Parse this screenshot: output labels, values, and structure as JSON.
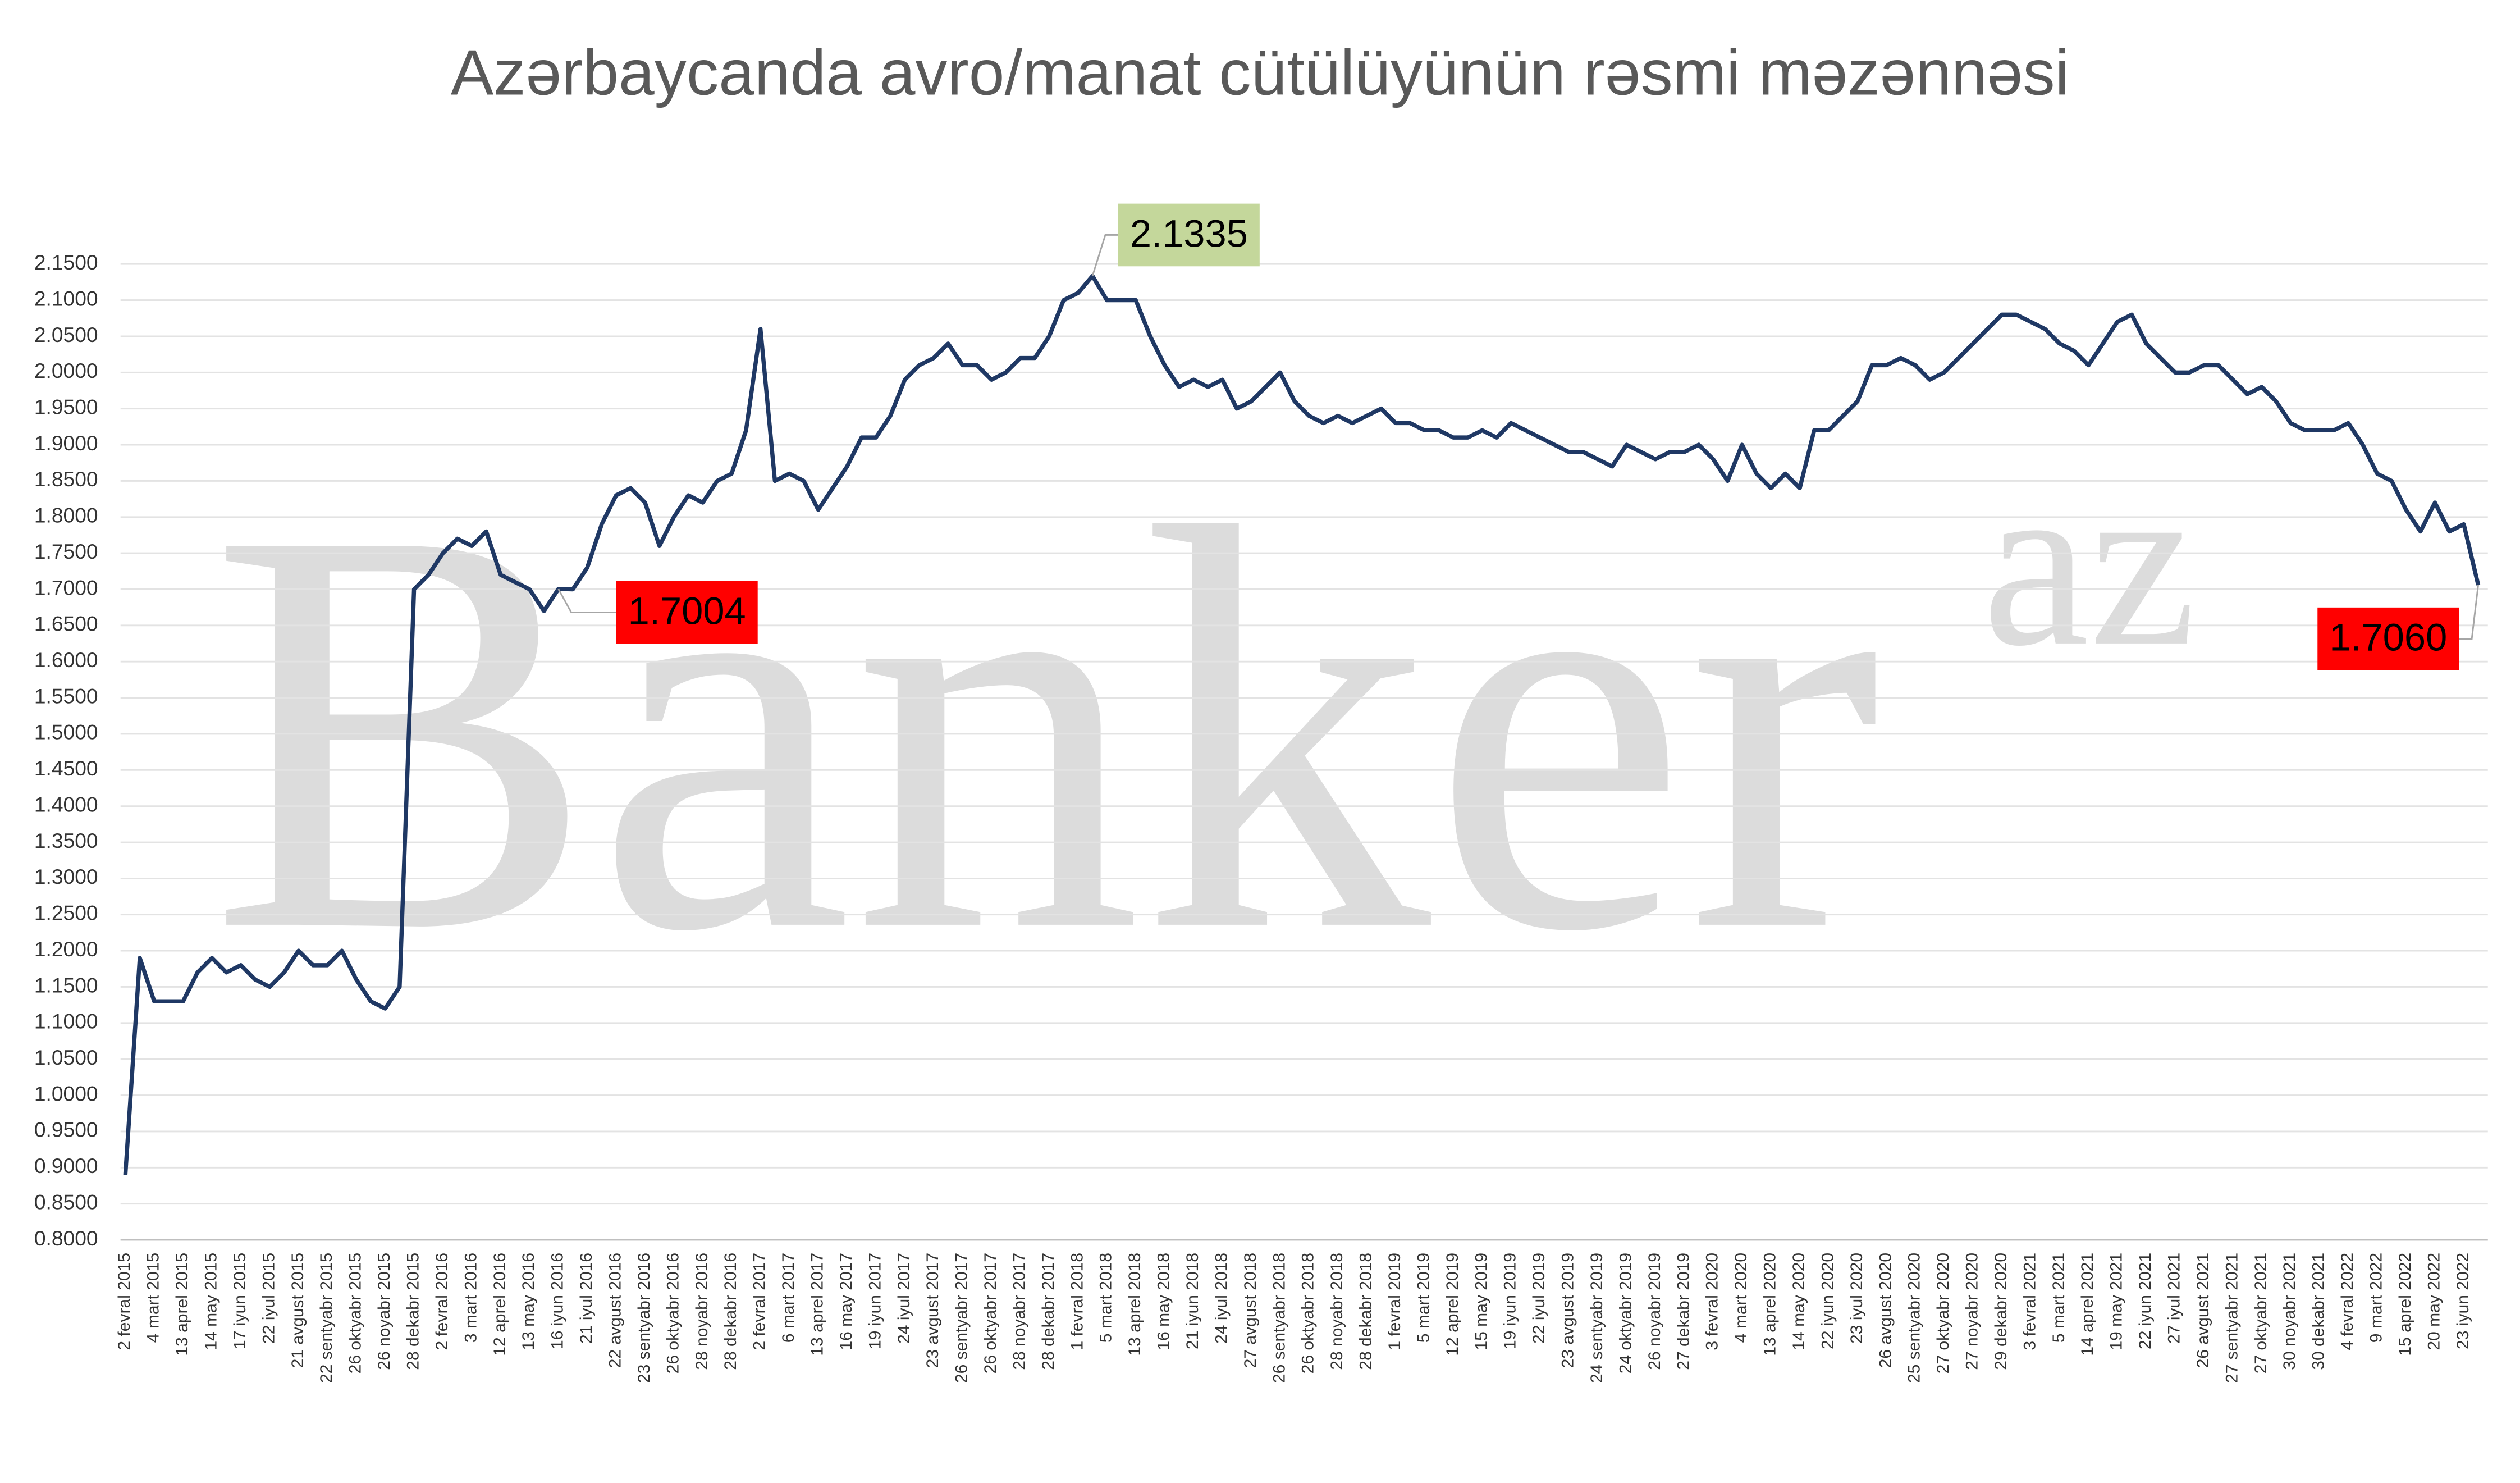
{
  "chart_data": {
    "type": "line",
    "title": "Azərbaycanda avro/manat cütülüyünün rəsmi məzənnəsi",
    "watermark": "Banker",
    "watermark_sup": "az",
    "categories": [
      "2 fevral 2015",
      null,
      "4 mart 2015",
      null,
      "13 aprel 2015",
      null,
      "14 may 2015",
      null,
      "17 iyun 2015",
      null,
      "22 iyul 2015",
      null,
      "21 avgust 2015",
      null,
      "22 sentyabr 2015",
      null,
      "26 oktyabr 2015",
      null,
      "26 noyabr 2015",
      null,
      "28 dekabr 2015",
      null,
      "2 fevral 2016",
      null,
      "3 mart 2016",
      null,
      "12 aprel 2016",
      null,
      "13 may 2016",
      null,
      "16 iyun 2016",
      null,
      "21 iyul 2016",
      null,
      "22 avgust 2016",
      null,
      "23 sentyabr 2016",
      null,
      "26 oktyabr 2016",
      null,
      "28 noyabr 2016",
      null,
      "28 dekabr 2016",
      null,
      "2 fevral 2017",
      null,
      "6 mart 2017",
      null,
      "13 aprel 2017",
      null,
      "16 may 2017",
      null,
      "19 iyun 2017",
      null,
      "24 iyul 2017",
      null,
      "23 avgust 2017",
      null,
      "26 sentyabr 2017",
      null,
      "26 oktyabr 2017",
      null,
      "28 noyabr 2017",
      null,
      "28 dekabr 2017",
      null,
      "1 fevral 2018",
      null,
      "5 mart 2018",
      null,
      "13 aprel 2018",
      null,
      "16 may 2018",
      null,
      "21 iyun 2018",
      null,
      "24 iyul 2018",
      null,
      "27 avgust 2018",
      null,
      "26 sentyabr 2018",
      null,
      "26 oktyabr 2018",
      null,
      "28 noyabr 2018",
      null,
      "28 dekabr 2018",
      null,
      "1 fevral 2019",
      null,
      "5 mart 2019",
      null,
      "12 aprel 2019",
      null,
      "15 may 2019",
      null,
      "19 iyun 2019",
      null,
      "22 iyul 2019",
      null,
      "23 avgust 2019",
      null,
      "24 sentyabr 2019",
      null,
      "24 oktyabr 2019",
      null,
      "26 noyabr 2019",
      null,
      "27 dekabr 2019",
      null,
      "3 fevral 2020",
      null,
      "4 mart 2020",
      null,
      "13 aprel 2020",
      null,
      "14 may 2020",
      null,
      "22 iyun 2020",
      null,
      "23 iyul 2020",
      null,
      "26 avgust 2020",
      null,
      "25 sentyabr 2020",
      null,
      "27 oktyabr 2020",
      null,
      "27 noyabr 2020",
      null,
      "29 dekabr 2020",
      null,
      "3 fevral 2021",
      null,
      "5 mart 2021",
      null,
      "14 aprel 2021",
      null,
      "19 may 2021",
      null,
      "22 iyun 2021",
      null,
      "27 iyul 2021",
      null,
      "26 avgust 2021",
      null,
      "27 sentyabr 2021",
      null,
      "27 oktyabr 2021",
      null,
      "30 noyabr 2021",
      null,
      "30 dekabr 2021",
      null,
      "4 fevral 2022",
      null,
      "9 mart 2022",
      null,
      "15 aprel 2022",
      null,
      "20 may 2022",
      null,
      "23 iyun 2022",
      null
    ],
    "series": [
      {
        "color": "#1f3864",
        "values": [
          0.89,
          1.19,
          1.13,
          1.13,
          1.13,
          1.17,
          1.19,
          1.17,
          1.18,
          1.16,
          1.15,
          1.17,
          1.2,
          1.18,
          1.18,
          1.2,
          1.16,
          1.13,
          1.12,
          1.15,
          1.7,
          1.72,
          1.75,
          1.77,
          1.76,
          1.78,
          1.72,
          1.71,
          1.7,
          1.67,
          1.7004,
          1.7,
          1.73,
          1.79,
          1.83,
          1.84,
          1.82,
          1.76,
          1.8,
          1.83,
          1.82,
          1.85,
          1.86,
          1.92,
          2.06,
          1.85,
          1.86,
          1.85,
          1.81,
          1.84,
          1.87,
          1.91,
          1.91,
          1.94,
          1.99,
          2.01,
          2.02,
          2.04,
          2.01,
          2.01,
          1.99,
          2.0,
          2.02,
          2.02,
          2.05,
          2.1,
          2.11,
          2.1335,
          2.1,
          2.1,
          2.1,
          2.05,
          2.01,
          1.98,
          1.99,
          1.98,
          1.99,
          1.95,
          1.96,
          1.98,
          2.0,
          1.96,
          1.94,
          1.93,
          1.94,
          1.93,
          1.94,
          1.95,
          1.93,
          1.93,
          1.92,
          1.92,
          1.91,
          1.91,
          1.92,
          1.91,
          1.93,
          1.92,
          1.91,
          1.9,
          1.89,
          1.89,
          1.88,
          1.87,
          1.9,
          1.89,
          1.88,
          1.89,
          1.89,
          1.9,
          1.88,
          1.85,
          1.9,
          1.86,
          1.84,
          1.86,
          1.84,
          1.92,
          1.92,
          1.94,
          1.96,
          2.01,
          2.01,
          2.02,
          2.01,
          1.99,
          2.0,
          2.02,
          2.04,
          2.06,
          2.08,
          2.08,
          2.07,
          2.06,
          2.04,
          2.03,
          2.01,
          2.04,
          2.07,
          2.08,
          2.04,
          2.02,
          2.0,
          2.0,
          2.01,
          2.01,
          1.99,
          1.97,
          1.98,
          1.96,
          1.93,
          1.92,
          1.92,
          1.92,
          1.93,
          1.9,
          1.86,
          1.85,
          1.81,
          1.78,
          1.82,
          1.78,
          1.79,
          1.706
        ],
        "value_labels": [
          null,
          null,
          null,
          null,
          null,
          null,
          null,
          null,
          null,
          null,
          null,
          null,
          null,
          null,
          null,
          null,
          null,
          null,
          null,
          null,
          null,
          null,
          null,
          null,
          null,
          null,
          null,
          null,
          null,
          null,
          "1.7004",
          null,
          null,
          null,
          null,
          null,
          null,
          null,
          null,
          null,
          null,
          null,
          null,
          null,
          null,
          null,
          null,
          null,
          null,
          null,
          null,
          null,
          null,
          null,
          null,
          null,
          null,
          null,
          null,
          null,
          null,
          null,
          null,
          null,
          null,
          null,
          null,
          "2.1335",
          null,
          null,
          null,
          null,
          null,
          null,
          null,
          null,
          null,
          null,
          null,
          null,
          null,
          null,
          null,
          null,
          null,
          null,
          null,
          null,
          null,
          null,
          null,
          null,
          null,
          null,
          null,
          null,
          null,
          null,
          null,
          null,
          null,
          null,
          null,
          null,
          null,
          null,
          null,
          null,
          null,
          null,
          null,
          null,
          null,
          null,
          null,
          null,
          null,
          null,
          null,
          null,
          null,
          null,
          null,
          null,
          null,
          null,
          null,
          null,
          null,
          null,
          null,
          null,
          null,
          null,
          null,
          null,
          null,
          null,
          null,
          null,
          null,
          null,
          null,
          null,
          null,
          null,
          null,
          null,
          null,
          null,
          null,
          null,
          null,
          null,
          null,
          null,
          null,
          null,
          null,
          null,
          null,
          null,
          null,
          "1.7060"
        ]
      }
    ],
    "label_colors": {
      "high": "#c4d79b",
      "low": "#ff0000"
    },
    "ylim": [
      0.8,
      2.15
    ],
    "yticks": [
      {
        "value": 0.8,
        "label": "0.8000"
      },
      {
        "value": 0.85,
        "label": "0.8500"
      },
      {
        "value": 0.9,
        "label": "0.9000"
      },
      {
        "value": 0.95,
        "label": "0.9500"
      },
      {
        "value": 1.0,
        "label": "1.0000"
      },
      {
        "value": 1.05,
        "label": "1.0500"
      },
      {
        "value": 1.1,
        "label": "1.1000"
      },
      {
        "value": 1.15,
        "label": "1.1500"
      },
      {
        "value": 1.2,
        "label": "1.2000"
      },
      {
        "value": 1.25,
        "label": "1.2500"
      },
      {
        "value": 1.3,
        "label": "1.3000"
      },
      {
        "value": 1.35,
        "label": "1.3500"
      },
      {
        "value": 1.4,
        "label": "1.4000"
      },
      {
        "value": 1.45,
        "label": "1.4500"
      },
      {
        "value": 1.5,
        "label": "1.5000"
      },
      {
        "value": 1.55,
        "label": "1.5500"
      },
      {
        "value": 1.6,
        "label": "1.6000"
      },
      {
        "value": 1.65,
        "label": "1.6500"
      },
      {
        "value": 1.7,
        "label": "1.7000"
      },
      {
        "value": 1.75,
        "label": "1.7500"
      },
      {
        "value": 1.8,
        "label": "1.8000"
      },
      {
        "value": 1.85,
        "label": "1.8500"
      },
      {
        "value": 1.9,
        "label": "1.9000"
      },
      {
        "value": 1.95,
        "label": "1.9500"
      },
      {
        "value": 2.0,
        "label": "2.0000"
      },
      {
        "value": 2.05,
        "label": "2.0500"
      },
      {
        "value": 2.1,
        "label": "2.1000"
      },
      {
        "value": 2.15,
        "label": "2.1500"
      }
    ],
    "grid": true
  }
}
